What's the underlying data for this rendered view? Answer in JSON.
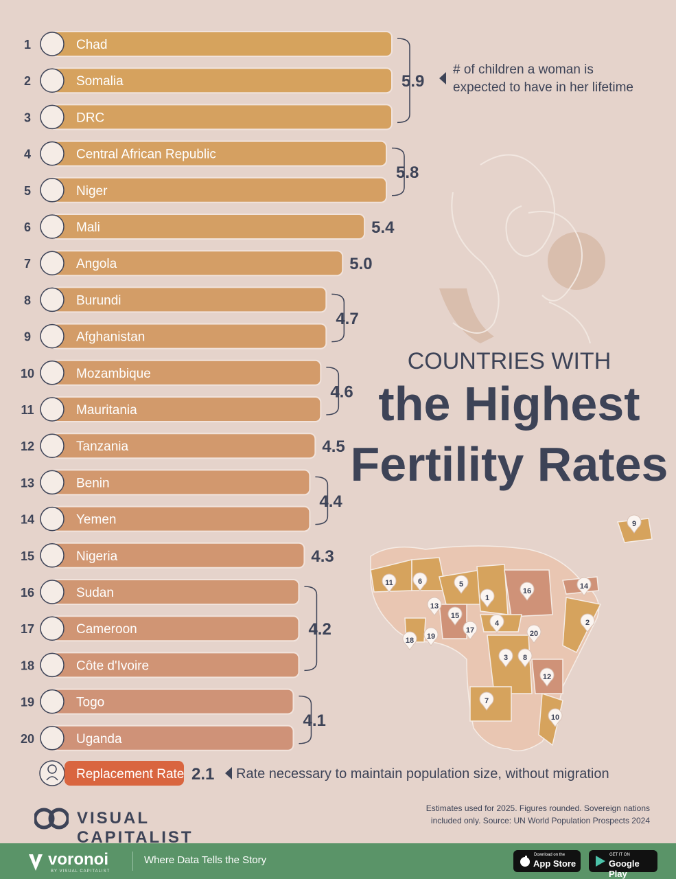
{
  "title": {
    "line1": "COUNTRIES WITH",
    "line2": "the Highest",
    "line3": "Fertility Rates"
  },
  "chart_data": {
    "type": "bar",
    "orientation": "horizontal",
    "categories": [
      "Chad",
      "Somalia",
      "DRC",
      "Central African Republic",
      "Niger",
      "Mali",
      "Angola",
      "Burundi",
      "Afghanistan",
      "Mozambique",
      "Mauritania",
      "Tanzania",
      "Benin",
      "Yemen",
      "Nigeria",
      "Sudan",
      "Cameroon",
      "Côte d'Ivoire",
      "Togo",
      "Uganda"
    ],
    "ranks": [
      "1",
      "2",
      "3",
      "4",
      "5",
      "6",
      "7",
      "8",
      "9",
      "10",
      "11",
      "12",
      "13",
      "14",
      "15",
      "16",
      "17",
      "18",
      "19",
      "20"
    ],
    "values": [
      5.9,
      5.9,
      5.9,
      5.8,
      5.8,
      5.4,
      5.0,
      4.7,
      4.7,
      4.6,
      4.6,
      4.5,
      4.4,
      4.4,
      4.3,
      4.2,
      4.2,
      4.2,
      4.1,
      4.1
    ],
    "value_groups": [
      {
        "label": "5.9",
        "from": 0,
        "to": 2
      },
      {
        "label": "5.8",
        "from": 3,
        "to": 4
      },
      {
        "label": "5.4",
        "from": 5,
        "to": 5
      },
      {
        "label": "5.0",
        "from": 6,
        "to": 6
      },
      {
        "label": "4.7",
        "from": 7,
        "to": 8
      },
      {
        "label": "4.6",
        "from": 9,
        "to": 10
      },
      {
        "label": "4.5",
        "from": 11,
        "to": 11
      },
      {
        "label": "4.4",
        "from": 12,
        "to": 13
      },
      {
        "label": "4.3",
        "from": 14,
        "to": 14
      },
      {
        "label": "4.2",
        "from": 15,
        "to": 17
      },
      {
        "label": "4.1",
        "from": 18,
        "to": 19
      }
    ],
    "annotation_line1": "# of children a woman is",
    "annotation_line2": "expected to have in her lifetime",
    "replacement": {
      "label": "Replacement Rate",
      "value": "2.1",
      "note": "Rate necessary to maintain population size, without migration",
      "color": "#d9653f"
    },
    "bar_color_top": "#d6a35d",
    "bar_color_bottom": "#cf9278",
    "map_markers": [
      "1",
      "2",
      "3",
      "4",
      "5",
      "6",
      "7",
      "8",
      "9",
      "10",
      "11",
      "12",
      "13",
      "14",
      "15",
      "16",
      "17",
      "18",
      "19",
      "20"
    ]
  },
  "notes": {
    "line1": "Estimates used for 2025. Figures rounded. Sovereign nations",
    "line2": "included only. Source: UN World Population Prospects 2024"
  },
  "brand": {
    "name": "VISUAL CAPITALIST"
  },
  "footer": {
    "brand": "voronoi",
    "brand_sub": "BY VISUAL CAPITALIST",
    "tagline": "Where Data Tells the Story",
    "appstore_small": "Download on the",
    "appstore_big": "App Store",
    "play_small": "GET IT ON",
    "play_big": "Google Play"
  },
  "colors": {
    "background": "#e5d3cb",
    "title": "#3d4357",
    "footer": "#5a9468"
  }
}
